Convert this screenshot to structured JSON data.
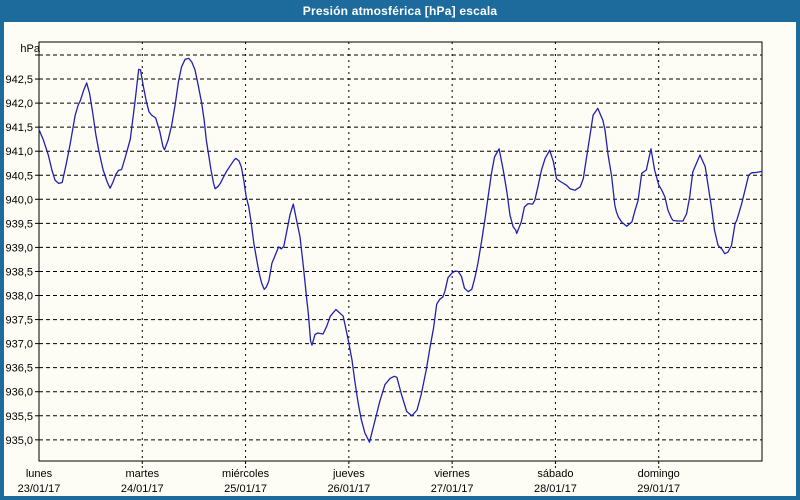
{
  "window": {
    "title": "Presión atmosférica [hPa] escala"
  },
  "colors": {
    "frame": "#1d6b9d",
    "titlebar_text": "#ffffff",
    "background": "#fdfdf5",
    "plot_border": "#000000",
    "gridline": "#000000",
    "line": "#2121ad",
    "label_text": "#000000"
  },
  "y_axis": {
    "unit_label": "hPa",
    "ticks": [
      {
        "value": 943.0,
        "label": ""
      },
      {
        "value": 942.5,
        "label": "942,5"
      },
      {
        "value": 942.0,
        "label": "942,0"
      },
      {
        "value": 941.5,
        "label": "941,5"
      },
      {
        "value": 941.0,
        "label": "941,0"
      },
      {
        "value": 940.5,
        "label": "940,5"
      },
      {
        "value": 940.0,
        "label": "940,0"
      },
      {
        "value": 939.5,
        "label": "939,5"
      },
      {
        "value": 939.0,
        "label": "939,0"
      },
      {
        "value": 938.5,
        "label": "938,5"
      },
      {
        "value": 938.0,
        "label": "938,0"
      },
      {
        "value": 937.5,
        "label": "937,5"
      },
      {
        "value": 937.0,
        "label": "937,0"
      },
      {
        "value": 936.5,
        "label": "936,5"
      },
      {
        "value": 936.0,
        "label": "936,0"
      },
      {
        "value": 935.5,
        "label": "935,5"
      },
      {
        "value": 935.0,
        "label": "935,0"
      }
    ]
  },
  "x_axis": {
    "days": [
      {
        "weekday": "lunes",
        "date": "23/01/17"
      },
      {
        "weekday": "martes",
        "date": "24/01/17"
      },
      {
        "weekday": "miércoles",
        "date": "25/01/17"
      },
      {
        "weekday": "jueves",
        "date": "26/01/17"
      },
      {
        "weekday": "viernes",
        "date": "27/01/17"
      },
      {
        "weekday": "sábado",
        "date": "28/01/17"
      },
      {
        "weekday": "domingo",
        "date": "29/01/17"
      }
    ]
  },
  "chart_data": {
    "type": "line",
    "title": "Presión atmosférica [hPa] escala",
    "xlabel": "",
    "ylabel": "hPa",
    "x_unit": "days since lunes 23/01/17 00:00",
    "xlim": [
      0,
      7
    ],
    "ylim": [
      934.56,
      943.27
    ],
    "y_gridline_step": 0.5,
    "grid": "dashed-black",
    "legend_position": "none",
    "series": [
      {
        "name": "Presión atmosférica (hPa)",
        "color": "#2121ad",
        "points": [
          [
            0.0,
            941.45
          ],
          [
            0.04,
            941.25
          ],
          [
            0.09,
            940.92
          ],
          [
            0.125,
            940.61
          ],
          [
            0.155,
            940.4
          ],
          [
            0.19,
            940.33
          ],
          [
            0.225,
            940.35
          ],
          [
            0.265,
            940.75
          ],
          [
            0.3,
            941.13
          ],
          [
            0.35,
            941.75
          ],
          [
            0.38,
            941.96
          ],
          [
            0.4,
            942.05
          ],
          [
            0.435,
            942.28
          ],
          [
            0.462,
            942.42
          ],
          [
            0.49,
            942.2
          ],
          [
            0.52,
            941.8
          ],
          [
            0.55,
            941.35
          ],
          [
            0.58,
            941.0
          ],
          [
            0.62,
            940.62
          ],
          [
            0.66,
            940.36
          ],
          [
            0.688,
            940.23
          ],
          [
            0.715,
            940.35
          ],
          [
            0.745,
            940.52
          ],
          [
            0.77,
            940.6
          ],
          [
            0.8,
            940.62
          ],
          [
            0.835,
            940.87
          ],
          [
            0.884,
            941.25
          ],
          [
            0.932,
            942.08
          ],
          [
            0.952,
            942.45
          ],
          [
            0.965,
            942.7
          ],
          [
            0.983,
            942.69
          ],
          [
            1.01,
            942.35
          ],
          [
            1.04,
            942.03
          ],
          [
            1.065,
            941.82
          ],
          [
            1.09,
            941.75
          ],
          [
            1.13,
            941.69
          ],
          [
            1.17,
            941.41
          ],
          [
            1.2,
            941.1
          ],
          [
            1.215,
            941.03
          ],
          [
            1.25,
            941.23
          ],
          [
            1.285,
            941.54
          ],
          [
            1.32,
            941.99
          ],
          [
            1.35,
            942.44
          ],
          [
            1.38,
            942.75
          ],
          [
            1.415,
            942.91
          ],
          [
            1.45,
            942.93
          ],
          [
            1.48,
            942.85
          ],
          [
            1.51,
            942.69
          ],
          [
            1.54,
            942.38
          ],
          [
            1.575,
            942.0
          ],
          [
            1.6,
            941.62
          ],
          [
            1.62,
            941.23
          ],
          [
            1.645,
            940.89
          ],
          [
            1.665,
            940.61
          ],
          [
            1.69,
            940.33
          ],
          [
            1.705,
            940.22
          ],
          [
            1.73,
            940.26
          ],
          [
            1.755,
            940.33
          ],
          [
            1.785,
            940.46
          ],
          [
            1.815,
            940.58
          ],
          [
            1.855,
            940.71
          ],
          [
            1.89,
            940.82
          ],
          [
            1.905,
            940.85
          ],
          [
            1.935,
            940.8
          ],
          [
            1.96,
            940.67
          ],
          [
            1.985,
            940.37
          ],
          [
            2.005,
            940.06
          ],
          [
            2.03,
            939.85
          ],
          [
            2.055,
            939.5
          ],
          [
            2.08,
            939.09
          ],
          [
            2.105,
            938.78
          ],
          [
            2.13,
            938.48
          ],
          [
            2.155,
            938.26
          ],
          [
            2.18,
            938.13
          ],
          [
            2.2,
            938.17
          ],
          [
            2.225,
            938.3
          ],
          [
            2.255,
            938.67
          ],
          [
            2.32,
            939.01
          ],
          [
            2.345,
            938.97
          ],
          [
            2.37,
            939.02
          ],
          [
            2.4,
            939.35
          ],
          [
            2.43,
            939.68
          ],
          [
            2.462,
            939.9
          ],
          [
            2.49,
            939.6
          ],
          [
            2.527,
            939.22
          ],
          [
            2.56,
            938.6
          ],
          [
            2.59,
            937.97
          ],
          [
            2.607,
            937.63
          ],
          [
            2.63,
            937.05
          ],
          [
            2.643,
            936.97
          ],
          [
            2.672,
            937.19
          ],
          [
            2.7,
            937.22
          ],
          [
            2.75,
            937.2
          ],
          [
            2.785,
            937.36
          ],
          [
            2.82,
            937.57
          ],
          [
            2.875,
            937.71
          ],
          [
            2.945,
            937.57
          ],
          [
            2.994,
            937.08
          ],
          [
            3.03,
            936.66
          ],
          [
            3.06,
            936.18
          ],
          [
            3.09,
            935.76
          ],
          [
            3.12,
            935.42
          ],
          [
            3.155,
            935.14
          ],
          [
            3.2,
            934.95
          ],
          [
            3.25,
            935.38
          ],
          [
            3.3,
            935.8
          ],
          [
            3.35,
            936.15
          ],
          [
            3.4,
            936.28
          ],
          [
            3.44,
            936.32
          ],
          [
            3.465,
            936.3
          ],
          [
            3.51,
            935.94
          ],
          [
            3.56,
            935.59
          ],
          [
            3.61,
            935.5
          ],
          [
            3.66,
            935.62
          ],
          [
            3.7,
            935.94
          ],
          [
            3.75,
            936.46
          ],
          [
            3.785,
            936.91
          ],
          [
            3.82,
            937.33
          ],
          [
            3.85,
            937.82
          ],
          [
            3.88,
            937.92
          ],
          [
            3.91,
            937.97
          ],
          [
            3.93,
            938.09
          ],
          [
            3.96,
            938.37
          ],
          [
            4.0,
            938.47
          ],
          [
            4.03,
            938.51
          ],
          [
            4.06,
            938.5
          ],
          [
            4.09,
            938.4
          ],
          [
            4.12,
            938.15
          ],
          [
            4.155,
            938.08
          ],
          [
            4.19,
            938.13
          ],
          [
            4.22,
            938.37
          ],
          [
            4.25,
            938.68
          ],
          [
            4.285,
            939.13
          ],
          [
            4.32,
            939.62
          ],
          [
            4.35,
            940.08
          ],
          [
            4.38,
            940.53
          ],
          [
            4.41,
            940.88
          ],
          [
            4.455,
            941.05
          ],
          [
            4.495,
            940.6
          ],
          [
            4.53,
            940.15
          ],
          [
            4.56,
            939.67
          ],
          [
            4.59,
            939.43
          ],
          [
            4.615,
            939.36
          ],
          [
            4.625,
            939.29
          ],
          [
            4.67,
            939.53
          ],
          [
            4.7,
            939.84
          ],
          [
            4.735,
            939.91
          ],
          [
            4.78,
            939.9
          ],
          [
            4.8,
            939.98
          ],
          [
            4.83,
            940.26
          ],
          [
            4.865,
            940.61
          ],
          [
            4.9,
            940.85
          ],
          [
            4.945,
            941.02
          ],
          [
            4.98,
            940.78
          ],
          [
            5.01,
            940.43
          ],
          [
            5.04,
            940.38
          ],
          [
            5.11,
            940.29
          ],
          [
            5.14,
            940.22
          ],
          [
            5.19,
            940.19
          ],
          [
            5.24,
            940.26
          ],
          [
            5.27,
            940.43
          ],
          [
            5.3,
            940.85
          ],
          [
            5.335,
            941.33
          ],
          [
            5.365,
            941.75
          ],
          [
            5.41,
            941.89
          ],
          [
            5.46,
            941.64
          ],
          [
            5.48,
            941.44
          ],
          [
            5.51,
            940.92
          ],
          [
            5.545,
            940.47
          ],
          [
            5.575,
            939.88
          ],
          [
            5.59,
            939.74
          ],
          [
            5.61,
            939.63
          ],
          [
            5.64,
            939.53
          ],
          [
            5.69,
            939.44
          ],
          [
            5.74,
            939.53
          ],
          [
            5.77,
            939.77
          ],
          [
            5.8,
            939.98
          ],
          [
            5.835,
            940.54
          ],
          [
            5.88,
            940.61
          ],
          [
            5.925,
            941.05
          ],
          [
            5.96,
            940.61
          ],
          [
            6.0,
            940.3
          ],
          [
            6.03,
            940.19
          ],
          [
            6.06,
            940.05
          ],
          [
            6.09,
            939.77
          ],
          [
            6.125,
            939.6
          ],
          [
            6.14,
            939.56
          ],
          [
            6.185,
            939.55
          ],
          [
            6.235,
            939.55
          ],
          [
            6.27,
            939.7
          ],
          [
            6.3,
            940.05
          ],
          [
            6.33,
            940.57
          ],
          [
            6.4,
            940.92
          ],
          [
            6.45,
            940.68
          ],
          [
            6.48,
            940.26
          ],
          [
            6.51,
            939.84
          ],
          [
            6.54,
            939.36
          ],
          [
            6.575,
            939.04
          ],
          [
            6.61,
            938.97
          ],
          [
            6.64,
            938.87
          ],
          [
            6.67,
            938.9
          ],
          [
            6.705,
            939.04
          ],
          [
            6.74,
            939.5
          ],
          [
            6.755,
            939.56
          ],
          [
            6.8,
            939.88
          ],
          [
            6.835,
            940.19
          ],
          [
            6.87,
            940.5
          ],
          [
            6.9,
            940.55
          ],
          [
            6.95,
            940.56
          ],
          [
            7.0,
            940.58
          ]
        ]
      }
    ]
  }
}
